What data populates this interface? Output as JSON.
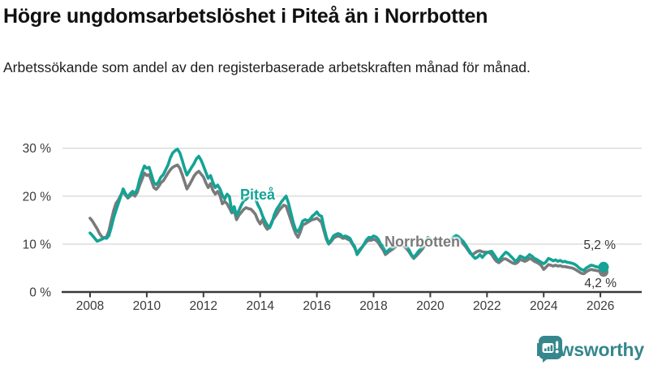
{
  "header": {
    "title": "Högre ungdomsarbetslöshet i Piteå än i Norrbotten",
    "subtitle": "Arbetssökande som andel av den registerbaserade arbetskraften månad för månad."
  },
  "chart_data": {
    "type": "line",
    "title": "Högre ungdomsarbetslöshet i Piteå än i Norrbotten",
    "frequency": "monthly",
    "x_start": "2008-01",
    "x_end": "2026-02",
    "xticks": [
      2008,
      2010,
      2012,
      2014,
      2016,
      2018,
      2020,
      2022,
      2024,
      2026
    ],
    "yticks": [
      {
        "value": 0,
        "label": "0 %"
      },
      {
        "value": 10,
        "label": "10 %"
      },
      {
        "value": 20,
        "label": "20 %"
      },
      {
        "value": 30,
        "label": "30 %"
      }
    ],
    "ylim": [
      0,
      31
    ],
    "grid": true,
    "legend_position": "inline-labels",
    "style": {
      "grid_color": "#d9d9d9",
      "axis_color": "#3a3a3a"
    },
    "series": [
      {
        "id": "pitea",
        "name": "Piteå",
        "color": "#14a395",
        "end_label": "5,2 %",
        "end_value": 5.2,
        "values": [
          12.3,
          11.8,
          11.2,
          10.6,
          10.8,
          11.0,
          11.3,
          11.2,
          11.8,
          13.5,
          15.5,
          17.0,
          18.5,
          20.0,
          21.5,
          20.5,
          19.8,
          20.5,
          21.0,
          20.5,
          21.5,
          23.5,
          25.0,
          26.3,
          25.8,
          26.0,
          24.5,
          22.8,
          22.4,
          23.0,
          24.0,
          24.5,
          25.5,
          26.5,
          28.0,
          29.0,
          29.5,
          29.8,
          29.0,
          27.5,
          25.8,
          24.4,
          25.2,
          26.0,
          26.8,
          27.8,
          28.3,
          27.5,
          26.3,
          25.0,
          23.7,
          24.3,
          22.9,
          21.8,
          22.3,
          21.5,
          20.2,
          19.4,
          20.4,
          19.9,
          16.8,
          17.8,
          15.9,
          17.0,
          18.1,
          19.0,
          19.3,
          19.8,
          20.3,
          21.0,
          19.5,
          18.2,
          17.3,
          15.9,
          14.8,
          14.0,
          13.4,
          14.5,
          16.2,
          17.3,
          18.0,
          18.8,
          19.4,
          20.0,
          18.5,
          16.5,
          14.5,
          13.0,
          12.6,
          13.5,
          14.8,
          15.1,
          14.9,
          15.1,
          15.8,
          16.2,
          16.7,
          16.0,
          15.8,
          13.5,
          11.5,
          10.1,
          10.8,
          11.7,
          12.0,
          12.2,
          12.0,
          11.5,
          11.7,
          11.5,
          11.2,
          10.2,
          9.5,
          7.8,
          8.5,
          9.2,
          10.0,
          10.9,
          11.4,
          11.3,
          11.7,
          11.5,
          11.0,
          10.0,
          9.5,
          8.2,
          8.6,
          9.0,
          9.3,
          9.8,
          10.2,
          10.5,
          10.3,
          10.0,
          9.5,
          8.8,
          7.8,
          7.2,
          7.8,
          8.5,
          9.0,
          9.6,
          10.5,
          11.4,
          11.0,
          10.8,
          10.5,
          11.0,
          11.2,
          10.5,
          10.0,
          10.2,
          10.5,
          11.0,
          11.5,
          11.8,
          11.5,
          11.0,
          10.5,
          9.8,
          9.0,
          8.2,
          7.5,
          7.0,
          7.3,
          7.8,
          7.2,
          7.8,
          8.2,
          8.4,
          8.5,
          7.8,
          7.0,
          6.5,
          7.2,
          7.8,
          8.3,
          8.0,
          7.5,
          7.0,
          6.4,
          6.8,
          7.5,
          7.3,
          7.0,
          7.3,
          7.8,
          7.5,
          7.0,
          6.8,
          6.5,
          6.2,
          5.9,
          6.3,
          7.0,
          6.8,
          6.5,
          6.7,
          6.4,
          6.6,
          6.3,
          6.4,
          6.2,
          6.1,
          6.0,
          5.8,
          5.5,
          5.0,
          4.7,
          4.5,
          5.0,
          5.3,
          5.6,
          5.5,
          5.3,
          5.2,
          5.0,
          5.2
        ]
      },
      {
        "id": "norrbotten",
        "name": "Norrbotten",
        "color": "#7a7a7a",
        "end_label": "4,2 %",
        "end_value": 4.2,
        "values": [
          15.4,
          14.8,
          14.0,
          13.2,
          12.2,
          11.5,
          11.3,
          11.5,
          12.8,
          15.0,
          17.0,
          18.5,
          19.2,
          20.2,
          20.9,
          20.2,
          19.6,
          20.0,
          20.4,
          20.0,
          20.8,
          22.3,
          23.5,
          24.8,
          24.3,
          24.5,
          23.2,
          21.8,
          21.4,
          22.0,
          22.8,
          23.2,
          24.0,
          24.8,
          25.5,
          26.0,
          26.3,
          26.5,
          25.8,
          24.5,
          23.0,
          21.5,
          22.3,
          23.2,
          24.2,
          24.8,
          25.2,
          24.6,
          24.0,
          22.8,
          21.8,
          22.6,
          21.2,
          20.4,
          21.0,
          20.1,
          18.4,
          18.9,
          18.4,
          17.5,
          16.5,
          17.0,
          15.1,
          16.0,
          16.6,
          17.2,
          17.6,
          17.4,
          17.3,
          16.8,
          16.2,
          15.0,
          14.2,
          15.1,
          13.8,
          13.1,
          13.5,
          14.8,
          15.5,
          16.2,
          17.0,
          17.6,
          18.1,
          17.9,
          16.4,
          15.0,
          13.5,
          12.2,
          11.4,
          12.5,
          14.0,
          14.2,
          14.5,
          14.8,
          15.1,
          15.2,
          15.4,
          15.0,
          14.5,
          12.8,
          11.0,
          10.0,
          10.5,
          11.2,
          11.5,
          11.7,
          11.5,
          11.2,
          11.3,
          11.0,
          10.8,
          10.0,
          9.2,
          8.1,
          8.8,
          9.3,
          9.9,
          10.5,
          10.8,
          10.8,
          11.0,
          10.8,
          10.3,
          9.5,
          8.8,
          7.8,
          8.2,
          8.6,
          8.9,
          9.3,
          9.7,
          10.0,
          9.8,
          9.5,
          9.0,
          8.4,
          7.6,
          7.0,
          7.5,
          8.0,
          8.6,
          9.2,
          10.0,
          10.8,
          10.5,
          10.3,
          10.2,
          10.8,
          11.0,
          10.3,
          9.8,
          10.0,
          10.2,
          10.6,
          11.0,
          11.2,
          11.0,
          10.5,
          10.0,
          9.4,
          8.7,
          8.0,
          7.8,
          8.2,
          8.5,
          8.6,
          8.4,
          8.3,
          8.3,
          8.2,
          7.8,
          7.0,
          6.4,
          6.1,
          6.5,
          6.9,
          6.9,
          6.6,
          6.3,
          6.0,
          5.9,
          6.2,
          6.8,
          6.6,
          6.4,
          6.6,
          7.0,
          6.8,
          6.4,
          6.2,
          5.9,
          5.5,
          4.7,
          5.2,
          5.7,
          5.6,
          5.4,
          5.6,
          5.4,
          5.5,
          5.3,
          5.3,
          5.2,
          5.1,
          5.0,
          4.8,
          4.5,
          4.2,
          3.9,
          3.8,
          4.2,
          4.5,
          4.7,
          4.6,
          4.5,
          4.4,
          4.3,
          4.2
        ]
      }
    ]
  },
  "footer": {
    "brand": "Newsworthy"
  }
}
